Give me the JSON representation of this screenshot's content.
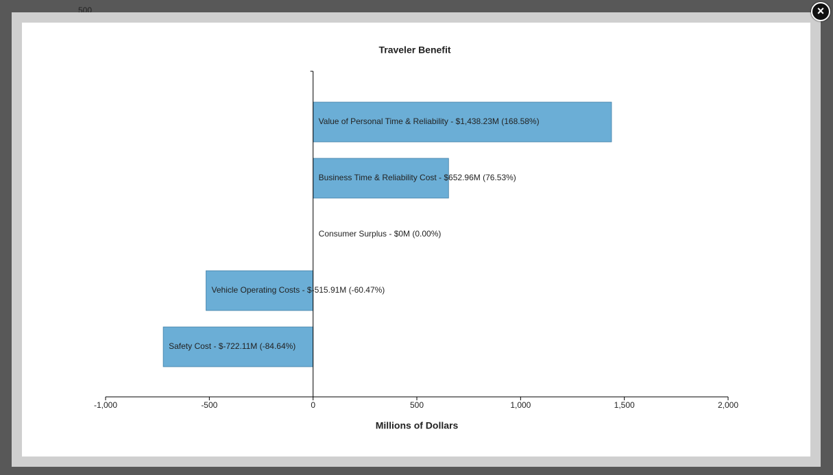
{
  "background_label": "500",
  "chart_data": {
    "type": "hbar",
    "title": "Traveler Benefit",
    "x_label": "Millions of Dollars",
    "values": [
      1438.23,
      652.96,
      0,
      -515.91,
      -722.11
    ],
    "value_labels": [
      "Value of Personal Time & Reliability - $1,438.23M (168.58%)",
      "Business Time & Reliability Cost - $652.96M (76.53%)",
      "Consumer Surplus - $0M (0.00%)",
      "Vehicle Operating Costs - $-515.91M (-60.47%)",
      "Safety Cost - $-722.11M (-84.64%)"
    ],
    "color": "#6baed6",
    "xlim": [
      -1000,
      2000
    ],
    "xticks": [
      {
        "value": -1000,
        "label": "-1,000"
      },
      -500,
      0,
      500,
      {
        "value": 1000,
        "label": "1,000"
      },
      {
        "value": 1500,
        "label": "1,500"
      },
      {
        "value": 2000,
        "label": "2,000"
      }
    ]
  }
}
